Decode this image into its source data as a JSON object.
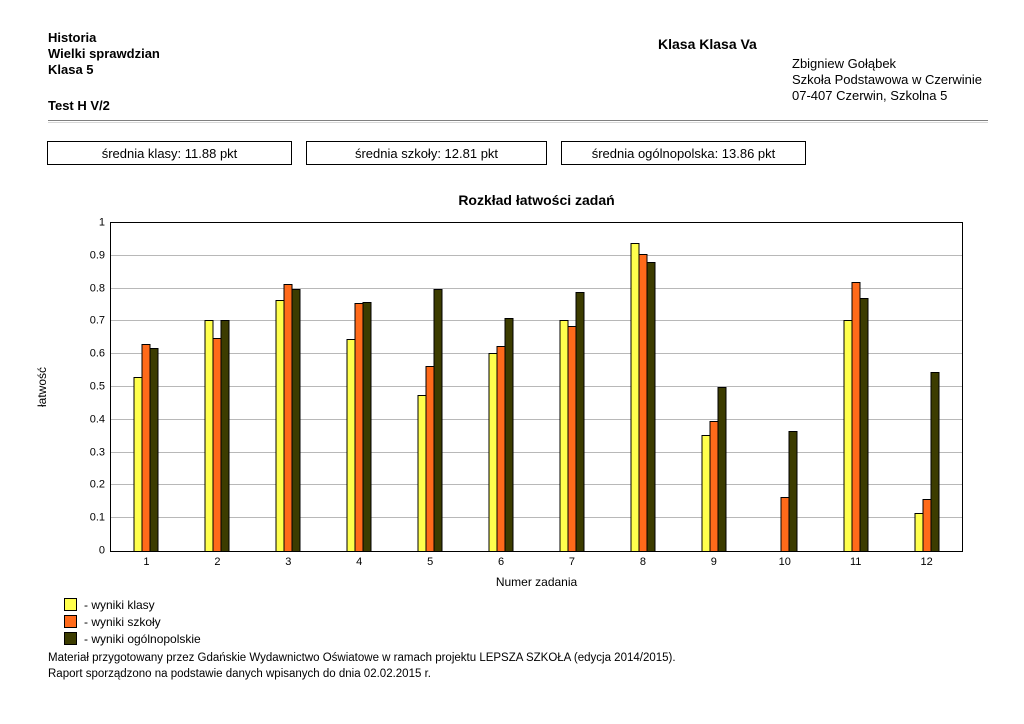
{
  "header": {
    "subject": "Historia",
    "exam_name": "Wielki sprawdzian",
    "grade": "Klasa 5",
    "test_label": "Test H V/2",
    "class_label": "Klasa Klasa Va",
    "teacher": "Zbigniew Gołąbek",
    "school": "Szkoła Podstawowa w Czerwinie",
    "address": "07-407 Czerwin, Szkolna 5"
  },
  "stats": [
    {
      "label": "średnia klasy: 11.88 pkt"
    },
    {
      "label": "średnia szkoły: 12.81 pkt"
    },
    {
      "label": "średnia ogólnopolska: 13.86 pkt"
    }
  ],
  "chart_data": {
    "type": "bar",
    "title": "Rozkład łatwości zadań",
    "xlabel": "Numer zadania",
    "ylabel": "łatwość",
    "ylim": [
      0,
      1
    ],
    "ytick_step": 0.1,
    "grid": true,
    "legend_position": "bottom-left",
    "categories": [
      "1",
      "2",
      "3",
      "4",
      "5",
      "6",
      "7",
      "8",
      "9",
      "10",
      "11",
      "12"
    ],
    "series": [
      {
        "name": "- wyniki klasy",
        "color": "#ffff4d",
        "values": [
          0.53,
          0.705,
          0.765,
          0.645,
          0.475,
          0.605,
          0.705,
          0.94,
          0.355,
          0,
          0.705,
          0.115
        ]
      },
      {
        "name": "- wyniki szkoły",
        "color": "#ff6a1a",
        "values": [
          0.63,
          0.65,
          0.815,
          0.755,
          0.565,
          0.625,
          0.685,
          0.905,
          0.395,
          0.165,
          0.82,
          0.16
        ]
      },
      {
        "name": "- wyniki ogólnopolskie",
        "color": "#3c3c00",
        "values": [
          0.62,
          0.705,
          0.8,
          0.76,
          0.8,
          0.71,
          0.79,
          0.88,
          0.5,
          0.365,
          0.77,
          0.545
        ]
      }
    ]
  },
  "footer": {
    "line1": "Materiał przygotowany przez Gdańskie Wydawnictwo Oświatowe w ramach projektu LEPSZA SZKOŁA (edycja 2014/2015).",
    "line2": "Raport sporządzono na podstawie danych wpisanych do dnia 02.02.2015 r."
  }
}
